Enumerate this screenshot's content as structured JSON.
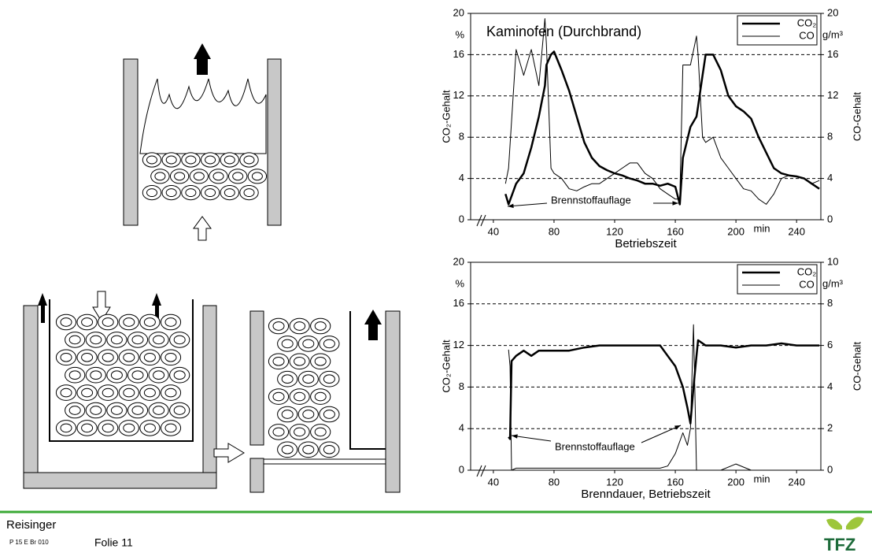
{
  "chart_data": [
    {
      "type": "line",
      "title": "Kaminofen (Durchbrand)",
      "x_label": "Betriebszeit",
      "x_unit": "min",
      "y_label": "CO₂-Gehalt",
      "y_unit": "%",
      "y2_label": "CO-Gehalt",
      "y2_unit": "g/m³",
      "annotation": "Brennstoffauflage",
      "grid": true,
      "legend": "upper right",
      "xlim": [
        25,
        256
      ],
      "xticks": [
        40,
        80,
        120,
        160,
        200,
        240
      ],
      "ylim": [
        0,
        20
      ],
      "yticks": [
        0,
        4,
        8,
        12,
        16,
        20
      ],
      "y2lim": [
        0,
        20
      ],
      "y2ticks": [
        0,
        4,
        8,
        12,
        16,
        20
      ],
      "x": [
        48,
        50,
        55,
        60,
        65,
        70,
        74,
        75,
        78,
        80,
        85,
        90,
        95,
        100,
        105,
        110,
        115,
        120,
        125,
        130,
        135,
        140,
        145,
        150,
        155,
        160,
        163,
        165,
        170,
        174,
        175,
        178,
        180,
        185,
        190,
        195,
        200,
        205,
        210,
        215,
        220,
        225,
        230,
        235,
        240,
        245,
        250,
        255
      ],
      "series": [
        {
          "name": "CO₂",
          "color": "#000000",
          "line_width": 2.5,
          "values": [
            2.5,
            1.5,
            3.5,
            4.5,
            7,
            10,
            13,
            15,
            16,
            16.3,
            14.5,
            12.5,
            10,
            7.5,
            6,
            5.2,
            4.8,
            4.5,
            4.3,
            4.0,
            3.8,
            3.5,
            3.5,
            3.3,
            3.5,
            3.2,
            1.5,
            6,
            9,
            10,
            11,
            14,
            16,
            16,
            14.5,
            12,
            11,
            10.5,
            9.8,
            8,
            6.5,
            5,
            4.5,
            4.3,
            4.2,
            4,
            3.5,
            3
          ]
        },
        {
          "name": "CO",
          "color": "#000000",
          "line_width": 1,
          "axis": "y2",
          "values": [
            3.5,
            5,
            16.5,
            14,
            16.5,
            13,
            19.5,
            17,
            5,
            4.5,
            4,
            3,
            2.8,
            3.2,
            3.5,
            3.5,
            4,
            4.5,
            5,
            5.5,
            5.5,
            4.5,
            4,
            3,
            2.5,
            2,
            2,
            15,
            15,
            17.8,
            16,
            8,
            7.5,
            8,
            6,
            5,
            4,
            3,
            2.8,
            2,
            1.5,
            2.5,
            4,
            4.3,
            4.2,
            4,
            3.5,
            3.8
          ]
        }
      ]
    },
    {
      "type": "line",
      "x_label": "Brenndauer, Betriebszeit",
      "x_unit": "min",
      "y_label": "CO₂-Gehalt",
      "y_unit": "%",
      "y2_label": "CO-Gehalt",
      "y2_unit": "g/m³",
      "annotation": "Brennstoffauflage",
      "grid": true,
      "legend": "upper right",
      "xlim": [
        25,
        256
      ],
      "xticks": [
        40,
        80,
        120,
        160,
        200,
        240
      ],
      "ylim": [
        0,
        20
      ],
      "yticks": [
        0,
        4,
        8,
        12,
        16,
        20
      ],
      "y2lim": [
        0,
        10
      ],
      "y2ticks": [
        0,
        2,
        4,
        6,
        8,
        10
      ],
      "x": [
        50,
        51,
        52,
        55,
        60,
        65,
        70,
        80,
        90,
        100,
        110,
        120,
        130,
        140,
        150,
        155,
        160,
        165,
        168,
        170,
        172,
        174,
        175,
        180,
        190,
        200,
        210,
        220,
        230,
        240,
        250,
        255
      ],
      "series": [
        {
          "name": "CO₂",
          "color": "#000000",
          "line_width": 2.5,
          "values": [
            3.2,
            3,
            10.5,
            11,
            11.5,
            11,
            11.5,
            11.5,
            11.5,
            11.8,
            12,
            12,
            12,
            12,
            12,
            11,
            10,
            8,
            6,
            4.5,
            8,
            11,
            12.5,
            12,
            12,
            11.8,
            12,
            12,
            12.2,
            12,
            12,
            12
          ]
        },
        {
          "name": "CO",
          "color": "#000000",
          "line_width": 1,
          "axis": "y2",
          "values": [
            5.8,
            5,
            0,
            0.1,
            0.1,
            0.1,
            0.1,
            0.1,
            0.1,
            0.1,
            0.1,
            0.1,
            0.1,
            0.1,
            0.1,
            0.2,
            0.8,
            1.8,
            1.2,
            2,
            7,
            0,
            0,
            0,
            0,
            0.3,
            0,
            0,
            0,
            0,
            0,
            0
          ]
        }
      ]
    }
  ],
  "footer": {
    "author": "Reisinger",
    "code": "P 15 E Br 010",
    "slide": "Folie 11",
    "logo": "TFZ"
  }
}
